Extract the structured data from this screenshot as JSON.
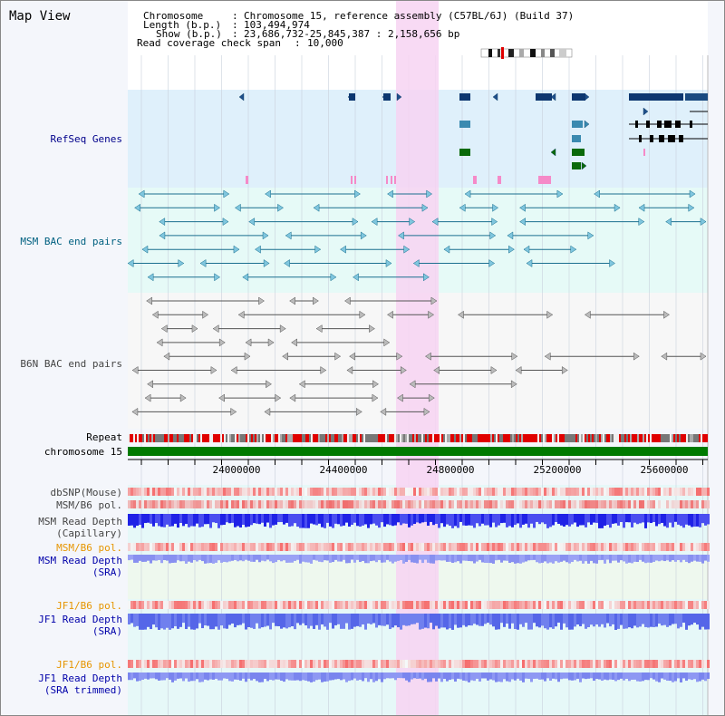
{
  "title": "Map View",
  "info": {
    "chromosome_label": "Chromosome",
    "chromosome_value": "Chromosome 15, reference assembly (C57BL/6J) (Build 37)",
    "length_label": "Length (b.p.)",
    "length_value": "103,494,974",
    "show_label": "Show (b.p.)",
    "show_value": "23,686,732-25,845,387 : 2,158,656 bp",
    "coverage_label": "Read coverage check span",
    "coverage_value": "10,000"
  },
  "colors": {
    "gene_band": "#dff0fb",
    "highlight": "#f7d4f2",
    "chrom_bar": "#007a00",
    "refseq_label": "#00008b",
    "msm_label": "#006080",
    "b6n_label": "#444444",
    "orange_label": "#e69500",
    "blue_label": "#0000aa"
  },
  "tracks": {
    "refseq": "RefSeq Genes",
    "msm_bac": "MSM BAC end pairs",
    "b6n_bac": "B6N BAC end pairs",
    "repeat": "Repeat",
    "chromosome": "chromosome 15",
    "dbsnp": "dbSNP(Mouse)",
    "msm_b6_pol_1": "MSM/B6 pol.",
    "msm_depth_cap_1": "MSM Read Depth",
    "msm_depth_cap_2": "(Capillary)",
    "msm_b6_pol_2": "MSM/B6 pol.",
    "msm_depth_sra_1": "MSM Read Depth",
    "msm_depth_sra_2": "(SRA)",
    "jf1_b6_pol_1": "JF1/B6 pol.",
    "jf1_depth_sra_1": "JF1 Read Depth",
    "jf1_depth_sra_2": "(SRA)",
    "jf1_b6_pol_2": "JF1/B6 pol.",
    "jf1_depth_trim_1": "JF1 Read Depth",
    "jf1_depth_trim_2": "(SRA trimmed)"
  },
  "axis": {
    "ticks": [
      "24000000",
      "24400000",
      "24800000",
      "25200000",
      "25600000"
    ]
  }
}
